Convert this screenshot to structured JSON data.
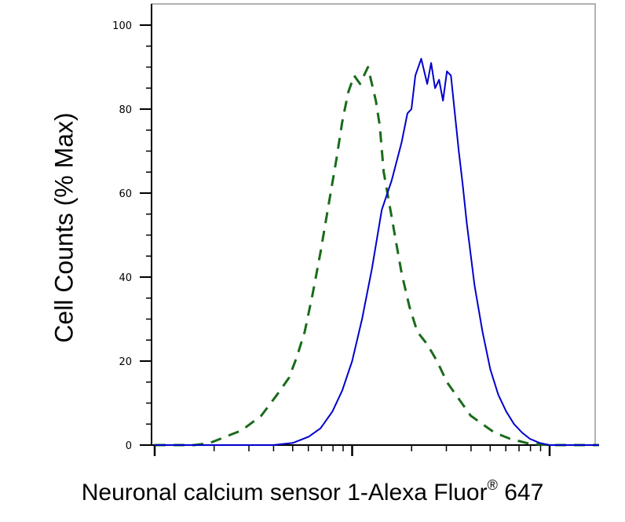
{
  "chart_data": {
    "type": "line",
    "title": "",
    "ylabel": "Cell Counts (% Max)",
    "xlabel": "Neuronal calcium sensor 1-Alexa Fluor",
    "xlabel_sup": "®",
    "xlabel_suffix": " 647",
    "x_scale": "log",
    "ylim": [
      0,
      105
    ],
    "yticks": [
      0,
      20,
      40,
      60,
      80,
      100
    ],
    "ytick_labels": [
      "0",
      "20",
      "40",
      "60",
      "80",
      "100"
    ],
    "xlim_decades": [
      0,
      2.25
    ],
    "x_major_tick_labels": [],
    "grid": false,
    "colors": {
      "control": "#1a6b1a",
      "sample": "#0000cc"
    },
    "series": [
      {
        "style": "dashed",
        "color": "#1a6b1a",
        "x": [
          0.0,
          0.2,
          0.28,
          0.36,
          0.44,
          0.54,
          0.62,
          0.68,
          0.72,
          0.76,
          0.8,
          0.84,
          0.88,
          0.92,
          0.95,
          0.98,
          1.01,
          1.04,
          1.08,
          1.12,
          1.14,
          1.16,
          1.19,
          1.22,
          1.25,
          1.29,
          1.33,
          1.38,
          1.43,
          1.48,
          1.54,
          1.6,
          1.66,
          1.72,
          1.8,
          1.9,
          2.0,
          2.1,
          2.25
        ],
        "y": [
          0,
          0,
          0.5,
          2,
          3.5,
          7,
          12,
          16,
          21,
          27,
          36,
          46,
          57,
          68,
          77,
          84,
          88,
          86,
          90,
          82,
          76,
          65,
          57,
          49,
          41,
          33,
          27,
          24,
          20,
          15,
          11,
          7,
          5,
          3,
          1.5,
          0.3,
          0,
          0,
          0
        ]
      },
      {
        "style": "solid",
        "color": "#0000cc",
        "x": [
          0.0,
          0.6,
          0.7,
          0.78,
          0.84,
          0.9,
          0.95,
          1.0,
          1.05,
          1.1,
          1.15,
          1.2,
          1.25,
          1.28,
          1.3,
          1.32,
          1.35,
          1.38,
          1.4,
          1.42,
          1.44,
          1.46,
          1.48,
          1.5,
          1.52,
          1.54,
          1.56,
          1.58,
          1.62,
          1.66,
          1.7,
          1.74,
          1.78,
          1.82,
          1.86,
          1.9,
          1.95,
          2.0,
          2.05,
          2.1,
          2.25
        ],
        "y": [
          0,
          0,
          0.5,
          2,
          4,
          8,
          13,
          20,
          30,
          42,
          56,
          63,
          72,
          79,
          80,
          88,
          92,
          86,
          91,
          85,
          87,
          82,
          89,
          88,
          79,
          70,
          62,
          53,
          38,
          27,
          18,
          12,
          8,
          5,
          3,
          1.5,
          0.5,
          0,
          0,
          0,
          0
        ]
      }
    ]
  }
}
